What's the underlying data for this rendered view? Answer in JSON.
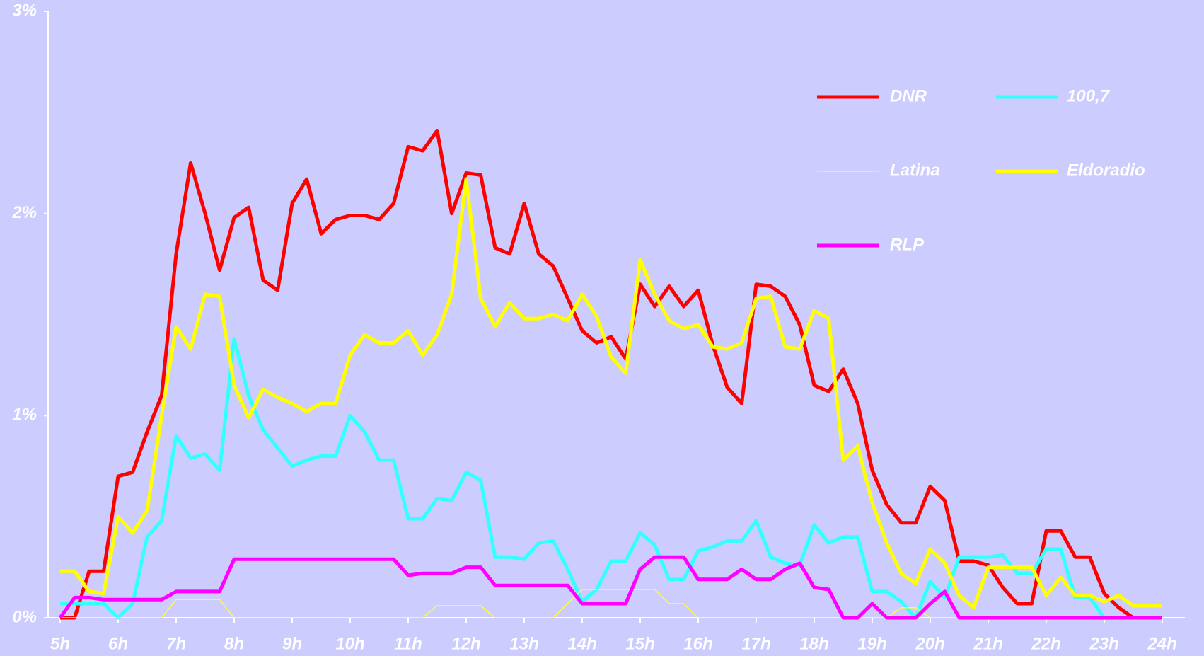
{
  "chart_data": {
    "type": "line",
    "x": [
      5,
      5.25,
      5.5,
      5.75,
      6,
      6.25,
      6.5,
      6.75,
      7,
      7.25,
      7.5,
      7.75,
      8,
      8.25,
      8.5,
      8.75,
      9,
      9.25,
      9.5,
      9.75,
      10,
      10.25,
      10.5,
      10.75,
      11,
      11.25,
      11.5,
      11.75,
      12,
      12.25,
      12.5,
      12.75,
      13,
      13.25,
      13.5,
      13.75,
      14,
      14.25,
      14.5,
      14.75,
      15,
      15.25,
      15.5,
      15.75,
      16,
      16.25,
      16.5,
      16.75,
      17,
      17.25,
      17.5,
      17.75,
      18,
      18.25,
      18.5,
      18.75,
      19,
      19.25,
      19.5,
      19.75,
      20,
      20.25,
      20.5,
      20.75,
      21,
      21.25,
      21.5,
      21.75,
      22,
      22.25,
      22.5,
      22.75,
      23,
      23.25,
      23.5,
      23.75,
      24
    ],
    "series": [
      {
        "name": "DNR",
        "color": "#ff0000",
        "line_width": 5,
        "values": [
          0,
          0,
          0.23,
          0.23,
          0.7,
          0.72,
          0.92,
          1.1,
          1.8,
          2.25,
          2.0,
          1.72,
          1.98,
          2.03,
          1.67,
          1.62,
          2.05,
          2.17,
          1.9,
          1.97,
          1.99,
          1.99,
          1.97,
          2.05,
          2.33,
          2.31,
          2.41,
          2.0,
          2.2,
          2.19,
          1.83,
          1.8,
          2.05,
          1.8,
          1.74,
          1.58,
          1.42,
          1.36,
          1.39,
          1.28,
          1.65,
          1.54,
          1.64,
          1.54,
          1.62,
          1.35,
          1.14,
          1.06,
          1.65,
          1.64,
          1.59,
          1.45,
          1.15,
          1.12,
          1.23,
          1.06,
          0.73,
          0.56,
          0.47,
          0.47,
          0.65,
          0.58,
          0.28,
          0.28,
          0.26,
          0.15,
          0.07,
          0.07,
          0.43,
          0.43,
          0.3,
          0.3,
          0.12,
          0.05,
          0,
          0,
          0
        ]
      },
      {
        "name": "100,7",
        "color": "#33ffff",
        "line_width": 5,
        "values": [
          0.07,
          0.07,
          0.07,
          0.07,
          0,
          0.07,
          0.4,
          0.48,
          0.9,
          0.79,
          0.81,
          0.73,
          1.38,
          1.1,
          0.93,
          0.84,
          0.75,
          0.78,
          0.8,
          0.8,
          1.0,
          0.92,
          0.78,
          0.78,
          0.49,
          0.49,
          0.59,
          0.58,
          0.72,
          0.68,
          0.3,
          0.3,
          0.29,
          0.37,
          0.38,
          0.24,
          0.08,
          0.14,
          0.28,
          0.28,
          0.42,
          0.36,
          0.19,
          0.19,
          0.33,
          0.35,
          0.38,
          0.38,
          0.48,
          0.3,
          0.27,
          0.26,
          0.46,
          0.37,
          0.4,
          0.4,
          0.13,
          0.13,
          0.08,
          0,
          0.18,
          0.1,
          0.3,
          0.3,
          0.3,
          0.31,
          0.22,
          0.22,
          0.34,
          0.34,
          0.1,
          0.1,
          0,
          0,
          0,
          0,
          0
        ]
      },
      {
        "name": "Latina",
        "color": "#ffff33",
        "line_width": 1.5,
        "values": [
          0,
          0,
          0,
          0,
          0,
          0,
          0,
          0,
          0.09,
          0.09,
          0.09,
          0.09,
          0,
          0,
          0,
          0,
          0,
          0,
          0,
          0,
          0,
          0,
          0,
          0,
          0,
          0,
          0.06,
          0.06,
          0.06,
          0.06,
          0,
          0,
          0,
          0,
          0,
          0.07,
          0.14,
          0.14,
          0.14,
          0.14,
          0.14,
          0.14,
          0.07,
          0.07,
          0,
          0,
          0,
          0,
          0,
          0,
          0,
          0,
          0,
          0,
          0,
          0,
          0,
          0,
          0.05,
          0.05,
          0,
          0,
          0,
          0,
          0,
          0,
          0,
          0,
          0,
          0,
          0,
          0,
          0,
          0,
          0,
          0,
          0
        ]
      },
      {
        "name": "Eldoradio",
        "color": "#ffff00",
        "line_width": 5,
        "values": [
          0.23,
          0.23,
          0.13,
          0.12,
          0.5,
          0.42,
          0.53,
          1.0,
          1.44,
          1.33,
          1.6,
          1.59,
          1.15,
          0.99,
          1.13,
          1.09,
          1.06,
          1.02,
          1.06,
          1.06,
          1.3,
          1.4,
          1.36,
          1.36,
          1.42,
          1.3,
          1.4,
          1.6,
          2.17,
          1.58,
          1.44,
          1.56,
          1.48,
          1.48,
          1.5,
          1.47,
          1.6,
          1.49,
          1.29,
          1.21,
          1.77,
          1.6,
          1.47,
          1.43,
          1.45,
          1.34,
          1.33,
          1.36,
          1.58,
          1.59,
          1.34,
          1.33,
          1.52,
          1.48,
          0.78,
          0.85,
          0.57,
          0.37,
          0.22,
          0.17,
          0.34,
          0.27,
          0.11,
          0.05,
          0.25,
          0.25,
          0.25,
          0.25,
          0.11,
          0.2,
          0.11,
          0.11,
          0.08,
          0.11,
          0.06,
          0.06,
          0.06
        ]
      },
      {
        "name": "RLP",
        "color": "#ff00ff",
        "line_width": 5,
        "values": [
          0,
          0.1,
          0.1,
          0.09,
          0.09,
          0.09,
          0.09,
          0.09,
          0.13,
          0.13,
          0.13,
          0.13,
          0.29,
          0.29,
          0.29,
          0.29,
          0.29,
          0.29,
          0.29,
          0.29,
          0.29,
          0.29,
          0.29,
          0.29,
          0.21,
          0.22,
          0.22,
          0.22,
          0.25,
          0.25,
          0.16,
          0.16,
          0.16,
          0.16,
          0.16,
          0.16,
          0.07,
          0.07,
          0.07,
          0.07,
          0.24,
          0.3,
          0.3,
          0.3,
          0.19,
          0.19,
          0.19,
          0.24,
          0.19,
          0.19,
          0.24,
          0.27,
          0.15,
          0.14,
          0,
          0,
          0.07,
          0,
          0,
          0,
          0.07,
          0.13,
          0,
          0,
          0,
          0,
          0,
          0,
          0,
          0,
          0,
          0,
          0,
          0,
          0,
          0,
          0
        ]
      }
    ],
    "xlim": [
      5,
      24
    ],
    "xticks": [
      {
        "value": 5,
        "label": "5h"
      },
      {
        "value": 6,
        "label": "6h"
      },
      {
        "value": 7,
        "label": "7h"
      },
      {
        "value": 8,
        "label": "8h"
      },
      {
        "value": 9,
        "label": "9h"
      },
      {
        "value": 10,
        "label": "10h"
      },
      {
        "value": 11,
        "label": "11h"
      },
      {
        "value": 12,
        "label": "12h"
      },
      {
        "value": 13,
        "label": "13h"
      },
      {
        "value": 14,
        "label": "14h"
      },
      {
        "value": 15,
        "label": "15h"
      },
      {
        "value": 16,
        "label": "16h"
      },
      {
        "value": 17,
        "label": "17h"
      },
      {
        "value": 18,
        "label": "18h"
      },
      {
        "value": 19,
        "label": "19h"
      },
      {
        "value": 20,
        "label": "20h"
      },
      {
        "value": 21,
        "label": "21h"
      },
      {
        "value": 22,
        "label": "22h"
      },
      {
        "value": 23,
        "label": "23h"
      },
      {
        "value": 24,
        "label": "24h"
      }
    ],
    "ylim": [
      0,
      3
    ],
    "yticks": [
      {
        "value": 0,
        "label": "0%"
      },
      {
        "value": 1,
        "label": "1%"
      },
      {
        "value": 2,
        "label": "2%"
      },
      {
        "value": 3,
        "label": "3%"
      }
    ],
    "grid": false,
    "legend": "upper right"
  }
}
